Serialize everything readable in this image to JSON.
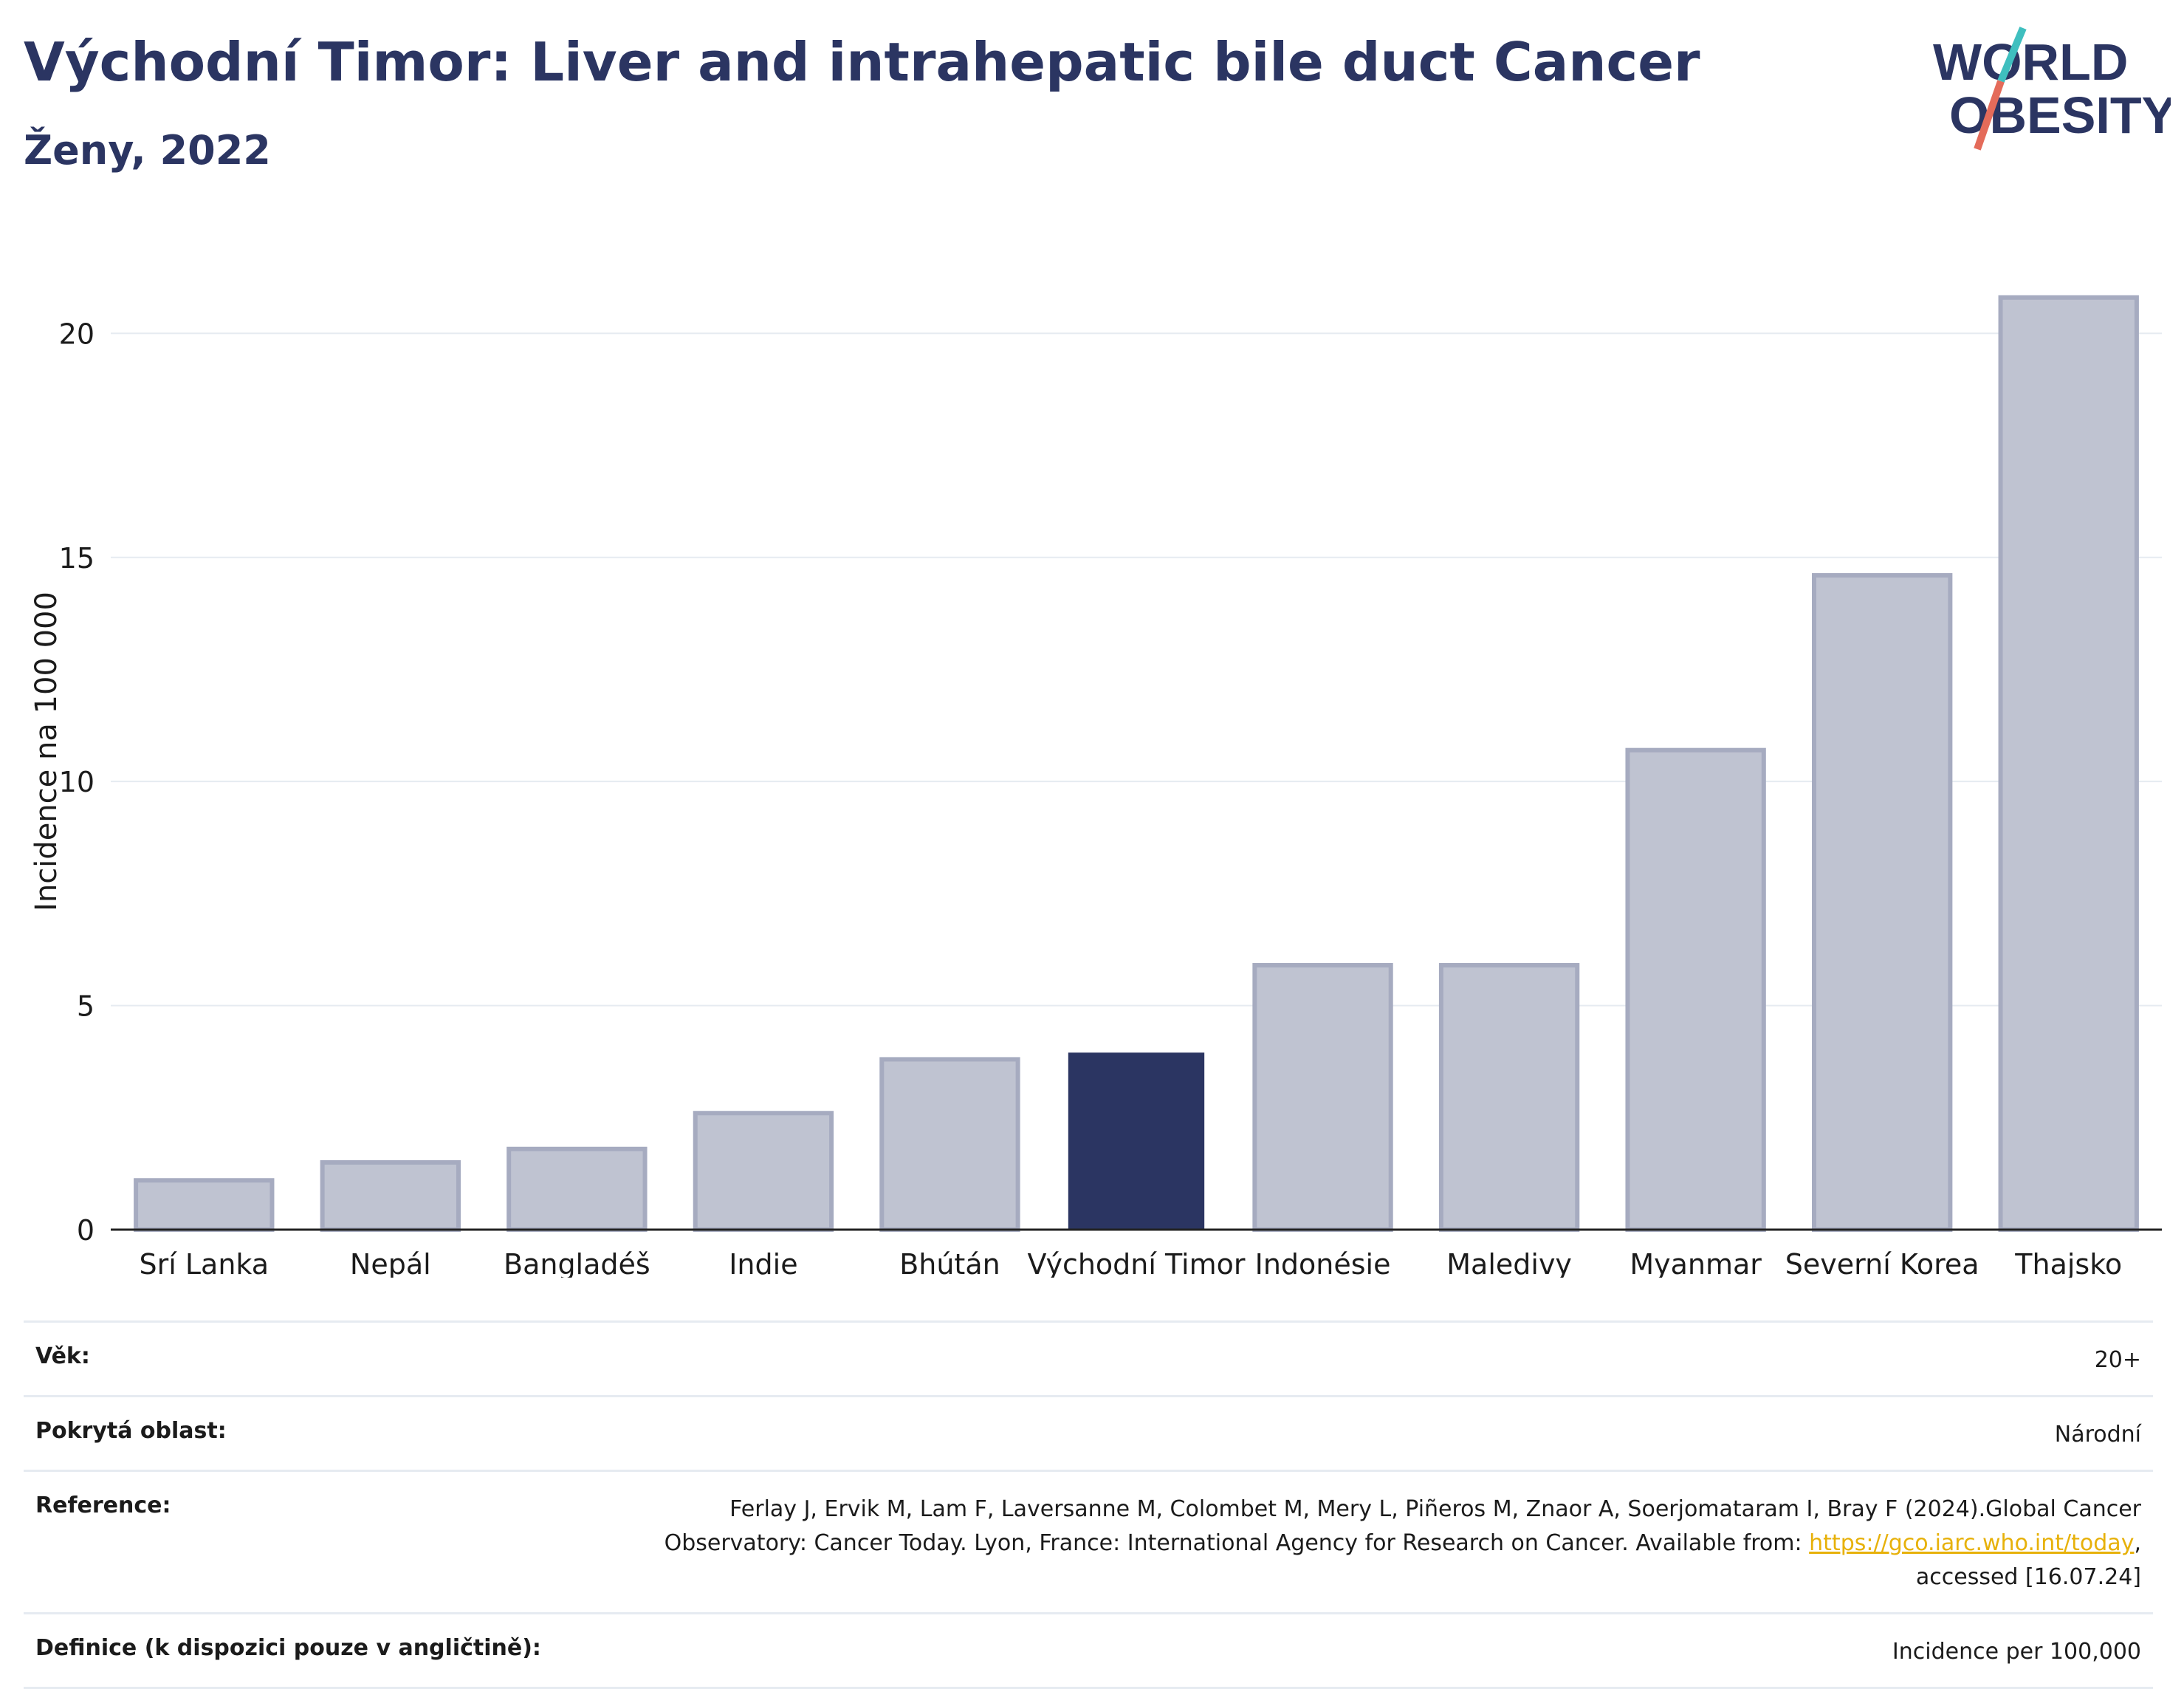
{
  "header": {
    "title": "Východní Timor: Liver and intrahepatic bile duct Cancer",
    "subtitle": "Ženy, 2022",
    "logo_line1": "WORLD",
    "logo_line2": "OBESITY"
  },
  "chart_data": {
    "type": "bar",
    "categories": [
      "Srí Lanka",
      "Nepál",
      "Bangladéš",
      "Indie",
      "Bhútán",
      "Východní Timor",
      "Indonésie",
      "Maledivy",
      "Myanmar",
      "Severní Korea",
      "Thajsko"
    ],
    "values": [
      1.1,
      1.5,
      1.8,
      2.6,
      3.8,
      3.95,
      5.9,
      5.9,
      10.7,
      14.6,
      20.8
    ],
    "highlight": "Východní Timor",
    "ylabel": "Incidence na 100 000",
    "ylim": [
      0,
      22
    ],
    "yticks": [
      0,
      5,
      10,
      15,
      20
    ],
    "grid": true,
    "colors": {
      "bar": "#bfc3d1",
      "bar_border": "#a6abc0",
      "highlight": "#2b3562",
      "grid": "#e6ebf1",
      "axis": "#222222"
    }
  },
  "meta": {
    "age_label": "Věk:",
    "age_value": "20+",
    "coverage_label": "Pokrytá oblast:",
    "coverage_value": "Národní",
    "reference_label": "Reference:",
    "reference_line1": "Ferlay J, Ervik M, Lam F, Laversanne M, Colombet M, Mery L, Piñeros M, Znaor A, Soerjomataram I, Bray F (2024).Global Cancer",
    "reference_line2": "Observatory: Cancer Today. Lyon, France: International Agency for Research on Cancer. Available from: ",
    "reference_link": "https://gco.iarc.who.int/today",
    "reference_line2_end": ",",
    "reference_line3": "accessed [16.07.24]",
    "definition_label": "Definice (k dispozici pouze v angličtině):",
    "definition_value": "Incidence per 100,000"
  }
}
